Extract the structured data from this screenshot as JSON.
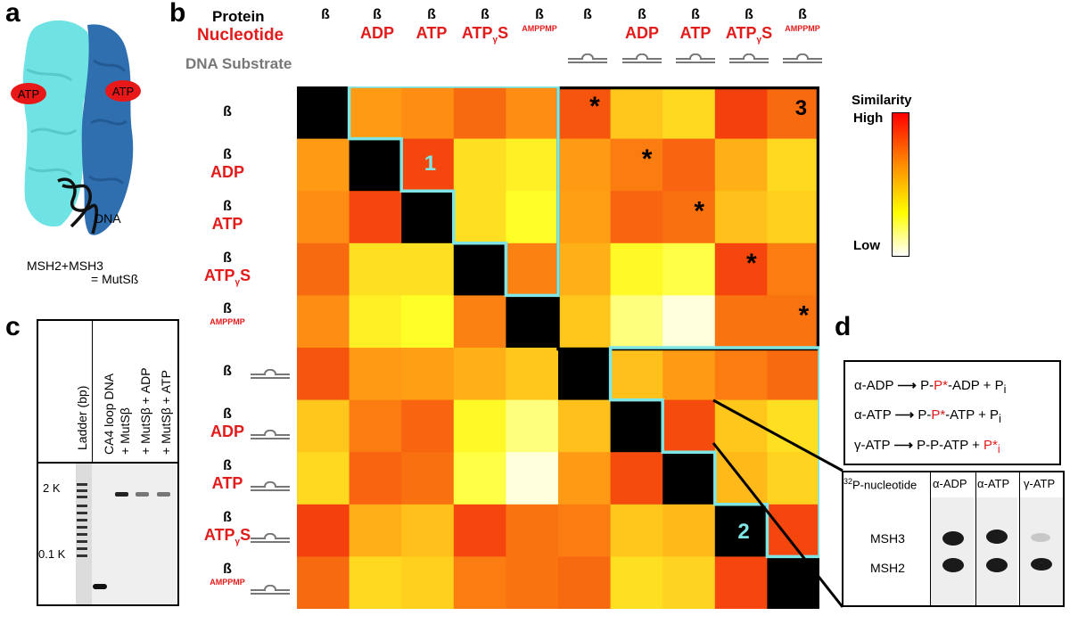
{
  "panel_letters": {
    "a": "a",
    "b": "b",
    "c": "c",
    "d": "d"
  },
  "panel_a": {
    "atp_left": "ATP",
    "atp_right": "ATP",
    "dna_label": "DNA",
    "caption_line1": "MSH2+MSH3",
    "caption_line2": "= MutSß"
  },
  "panel_b": {
    "header_protein": "Protein",
    "header_nucleotide": "Nucleotide",
    "header_dna": "DNA Substrate",
    "beta": "ß",
    "box_labels": [
      "1",
      "2",
      "3"
    ],
    "legend": {
      "title": "Similarity",
      "high": "High",
      "low": "Low"
    }
  },
  "chart_data": {
    "type": "heatmap",
    "title": "",
    "protein": "ß",
    "conditions": [
      {
        "protein": "ß",
        "nucleotide": "",
        "dna": false
      },
      {
        "protein": "ß",
        "nucleotide": "ADP",
        "dna": false
      },
      {
        "protein": "ß",
        "nucleotide": "ATP",
        "dna": false
      },
      {
        "protein": "ß",
        "nucleotide": "ATPγS",
        "dna": false
      },
      {
        "protein": "ß",
        "nucleotide": "AMPPMP",
        "dna": false
      },
      {
        "protein": "ß",
        "nucleotide": "",
        "dna": true
      },
      {
        "protein": "ß",
        "nucleotide": "ADP",
        "dna": true
      },
      {
        "protein": "ß",
        "nucleotide": "ATP",
        "dna": true
      },
      {
        "protein": "ß",
        "nucleotide": "ATPγS",
        "dna": true
      },
      {
        "protein": "ß",
        "nucleotide": "AMPPMP",
        "dna": true
      }
    ],
    "colorscale": {
      "low": "#ffffff",
      "mid": "#ffff00",
      "high": "#ff0000",
      "label": "Similarity"
    },
    "values": [
      [
        1.0,
        0.62,
        0.66,
        0.78,
        0.66,
        0.85,
        0.48,
        0.42,
        0.92,
        0.78
      ],
      [
        0.62,
        1.0,
        0.9,
        0.4,
        0.35,
        0.62,
        0.72,
        0.8,
        0.55,
        0.42
      ],
      [
        0.66,
        0.9,
        1.0,
        0.4,
        0.3,
        0.6,
        0.8,
        0.76,
        0.5,
        0.45
      ],
      [
        0.78,
        0.4,
        0.4,
        1.0,
        0.7,
        0.55,
        0.32,
        0.26,
        0.9,
        0.72
      ],
      [
        0.66,
        0.35,
        0.3,
        0.7,
        1.0,
        0.48,
        0.18,
        0.05,
        0.75,
        0.75
      ],
      [
        0.85,
        0.62,
        0.6,
        0.55,
        0.48,
        1.0,
        0.5,
        0.62,
        0.72,
        0.78
      ],
      [
        0.48,
        0.72,
        0.8,
        0.32,
        0.18,
        0.5,
        1.0,
        0.88,
        0.48,
        0.4
      ],
      [
        0.42,
        0.8,
        0.76,
        0.26,
        0.05,
        0.62,
        0.88,
        1.0,
        0.52,
        0.44
      ],
      [
        0.92,
        0.55,
        0.5,
        0.9,
        0.75,
        0.72,
        0.48,
        0.52,
        1.0,
        0.9
      ],
      [
        0.78,
        0.42,
        0.45,
        0.72,
        0.75,
        0.78,
        0.4,
        0.44,
        0.9,
        1.0
      ]
    ],
    "starred_cells": [
      [
        0,
        5
      ],
      [
        1,
        6
      ],
      [
        2,
        7
      ],
      [
        3,
        8
      ],
      [
        4,
        9
      ]
    ],
    "boxes": [
      {
        "label": "1",
        "region": "no-DNA nucleotide block (ADP, ATP, ATPγS, AMPPMP)"
      },
      {
        "label": "2",
        "region": "DNA nucleotide block (ADP, ATP, ATPγS, AMPPMP)"
      },
      {
        "label": "3",
        "region": "no-DNA vs DNA block"
      }
    ]
  },
  "panel_c": {
    "lane_labels": [
      "Ladder (bp)",
      "CA4 loop DNA",
      "+ MutSβ",
      "+ MutSβ + ADP",
      "+ MutSβ + ATP"
    ],
    "size_markers": [
      "2 K",
      "0.1 K"
    ]
  },
  "panel_d": {
    "eq1": {
      "left": "α-ADP",
      "right_a": "P-",
      "right_b": "P*",
      "right_c": "-ADP + P",
      "sub": "i"
    },
    "eq2": {
      "left": "α-ATP",
      "right_a": "P-",
      "right_b": "P*",
      "right_c": "-ATP + P",
      "sub": "i"
    },
    "eq3": {
      "left": "γ-ATP",
      "right_a": "P-P-ATP + ",
      "right_b": "P*",
      "sub": "i"
    },
    "blot_header": {
      "sup": "32",
      "text": "P-nucleotide",
      "lanes": [
        "α-ADP",
        "α-ATP",
        "γ-ATP"
      ]
    },
    "bands": [
      "MSH3",
      "MSH2"
    ]
  }
}
